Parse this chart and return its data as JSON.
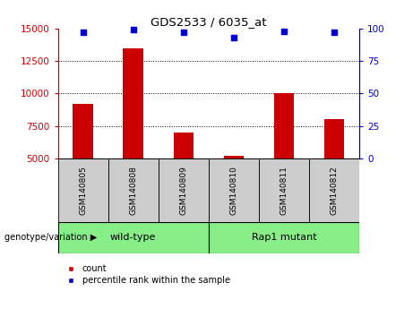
{
  "title": "GDS2533 / 6035_at",
  "samples": [
    "GSM140805",
    "GSM140808",
    "GSM140809",
    "GSM140810",
    "GSM140811",
    "GSM140812"
  ],
  "bar_values": [
    9200,
    13500,
    7000,
    5200,
    10000,
    8000
  ],
  "percentile_values": [
    97,
    99,
    97,
    93,
    98,
    97
  ],
  "ylim_left": [
    5000,
    15000
  ],
  "ylim_right": [
    0,
    100
  ],
  "yticks_left": [
    5000,
    7500,
    10000,
    12500,
    15000
  ],
  "yticks_right": [
    0,
    25,
    50,
    75,
    100
  ],
  "bar_color": "#cc0000",
  "percentile_color": "#0000cc",
  "grid_color": "#000000",
  "plot_bg": "#ffffff",
  "group_label": "genotype/variation",
  "legend_count_label": "count",
  "legend_pct_label": "percentile rank within the sample",
  "sample_box_color": "#cccccc",
  "green_color": "#88ee88",
  "wildtype_label": "wild-type",
  "mutant_label": "Rap1 mutant"
}
